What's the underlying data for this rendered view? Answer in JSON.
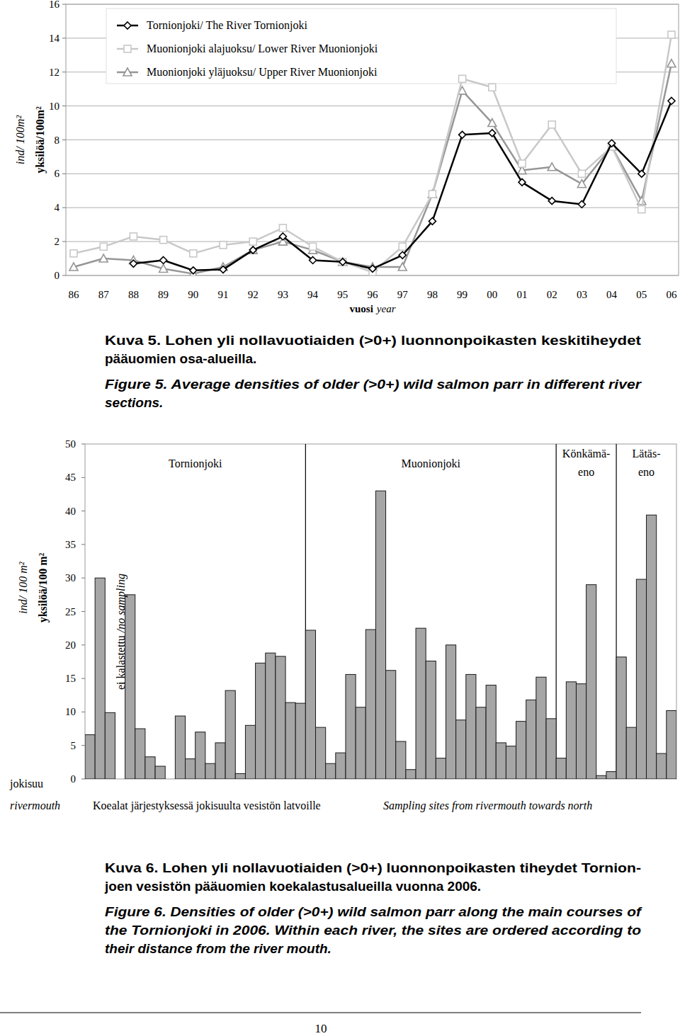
{
  "chart_data": [
    {
      "type": "line",
      "y_label": [
        "ind/ 100m²",
        "yksilöä/100m²"
      ],
      "x_label": [
        "vuosi",
        "year"
      ],
      "categories": [
        "86",
        "87",
        "88",
        "89",
        "90",
        "91",
        "92",
        "93",
        "94",
        "95",
        "96",
        "97",
        "98",
        "99",
        "00",
        "01",
        "02",
        "03",
        "04",
        "05",
        "06"
      ],
      "ylim": [
        0,
        16
      ],
      "yticks": [
        0,
        2,
        4,
        6,
        8,
        10,
        12,
        14,
        16
      ],
      "grid": true,
      "legend": "top-left",
      "series": [
        {
          "name": "Tornionjoki/ The River Tornionjoki",
          "color": "#000000",
          "marker": "diamond",
          "values": [
            null,
            null,
            0.7,
            0.9,
            0.3,
            0.35,
            1.5,
            2.3,
            0.9,
            0.8,
            0.4,
            1.2,
            3.2,
            8.3,
            8.4,
            5.5,
            4.4,
            4.2,
            7.8,
            6.0,
            10.3
          ]
        },
        {
          "name": "Muonionjoki alajuoksu/ Lower River Muonionjoki",
          "color": "#c8c8c8",
          "marker": "square",
          "values": [
            1.3,
            1.7,
            2.3,
            2.1,
            1.3,
            1.8,
            2.0,
            2.8,
            1.7,
            0.8,
            0.2,
            1.7,
            4.8,
            11.6,
            11.1,
            6.6,
            8.9,
            6.0,
            7.6,
            3.9,
            14.2
          ]
        },
        {
          "name": "Muonionjoki yläjuoksu/ Upper River Muonionjoki",
          "color": "#969696",
          "marker": "triangle",
          "values": [
            0.5,
            1.0,
            0.9,
            0.4,
            0.1,
            0.5,
            1.5,
            2.0,
            1.5,
            0.8,
            0.5,
            0.5,
            4.8,
            10.9,
            9.0,
            6.2,
            6.4,
            5.4,
            7.6,
            4.4,
            12.5
          ]
        }
      ]
    },
    {
      "type": "bar",
      "y_label": [
        "ind/ 100 m²",
        "yksilöä/100 m²"
      ],
      "x_label": [
        "Koealat järjestyksessä jokisuulta vesistön latvoille",
        "Sampling sites from rivermouth towards north"
      ],
      "annotations": {
        "no_sampling": [
          "ei kalastettu",
          "/no sampling"
        ],
        "rivermouth": [
          "jokisuu",
          "rivermouth"
        ]
      },
      "categories": [
        null,
        null,
        null,
        null,
        null,
        null,
        null,
        null,
        null,
        null,
        null,
        null,
        null,
        null,
        null,
        null,
        null,
        null,
        null,
        null,
        null,
        null,
        null,
        null,
        null,
        null,
        null,
        null,
        null,
        null,
        null,
        null,
        null,
        null,
        null,
        null,
        null,
        null,
        null,
        null,
        null,
        null,
        null,
        null,
        null,
        null,
        null,
        null,
        null,
        null,
        null,
        null,
        null,
        null,
        null,
        null,
        null,
        null,
        null
      ],
      "values": [
        6.6,
        30,
        9.9,
        null,
        27.5,
        7.5,
        3.3,
        1.9,
        0,
        9.4,
        3,
        7,
        2.3,
        5.4,
        13.2,
        0.8,
        8,
        17.3,
        18.8,
        18.3,
        11.4,
        11.3,
        22.2,
        7.7,
        2.3,
        3.9,
        15.6,
        10.7,
        22.3,
        43,
        16.2,
        5.6,
        1.4,
        22.5,
        17.6,
        3.1,
        20,
        8.8,
        15.6,
        10.7,
        14,
        5.4,
        4.9,
        8.6,
        11.8,
        15.2,
        9,
        3.1,
        14.5,
        14.2,
        29,
        0.5,
        1.1,
        18.2,
        7.7,
        29.8,
        39.4,
        3.8,
        10.2
      ],
      "color": "#a6a6a6",
      "groups": [
        {
          "label": [
            "Tornionjoki"
          ],
          "size": 22
        },
        {
          "label": [
            "Muonionjoki"
          ],
          "size": 25
        },
        {
          "label": [
            "Könkämä-",
            "eno"
          ],
          "size": 6
        },
        {
          "label": [
            "Lätäs-",
            "eno"
          ],
          "size": 6
        }
      ],
      "ylim": [
        0,
        50
      ],
      "yticks": [
        0,
        5,
        10,
        15,
        20,
        25,
        30,
        35,
        40,
        45,
        50
      ],
      "grid": false
    }
  ],
  "captions": [
    {
      "fi": [
        "Kuva 5. Lohen yli nollavuotiaiden (>0+) luonnonpoikasten keskitiheydet",
        "pääuomien osa-alueilla."
      ],
      "en": [
        "Figure 5. Average densities of older (>0+) wild salmon parr in different river",
        "sections."
      ]
    },
    {
      "fi": [
        "Kuva 6. Lohen yli nollavuotiaiden (>0+) luonnonpoikasten tiheydet Tornion-",
        "joen vesistön pääuomien koekalastusalueilla vuonna 2006."
      ],
      "en": [
        "Figure 6. Densities of older (>0+) wild salmon parr along the main courses of",
        "the Tornionjoki in 2006. Within each river, the sites are ordered according to",
        "their distance from the river mouth."
      ]
    }
  ],
  "page_number": "10"
}
